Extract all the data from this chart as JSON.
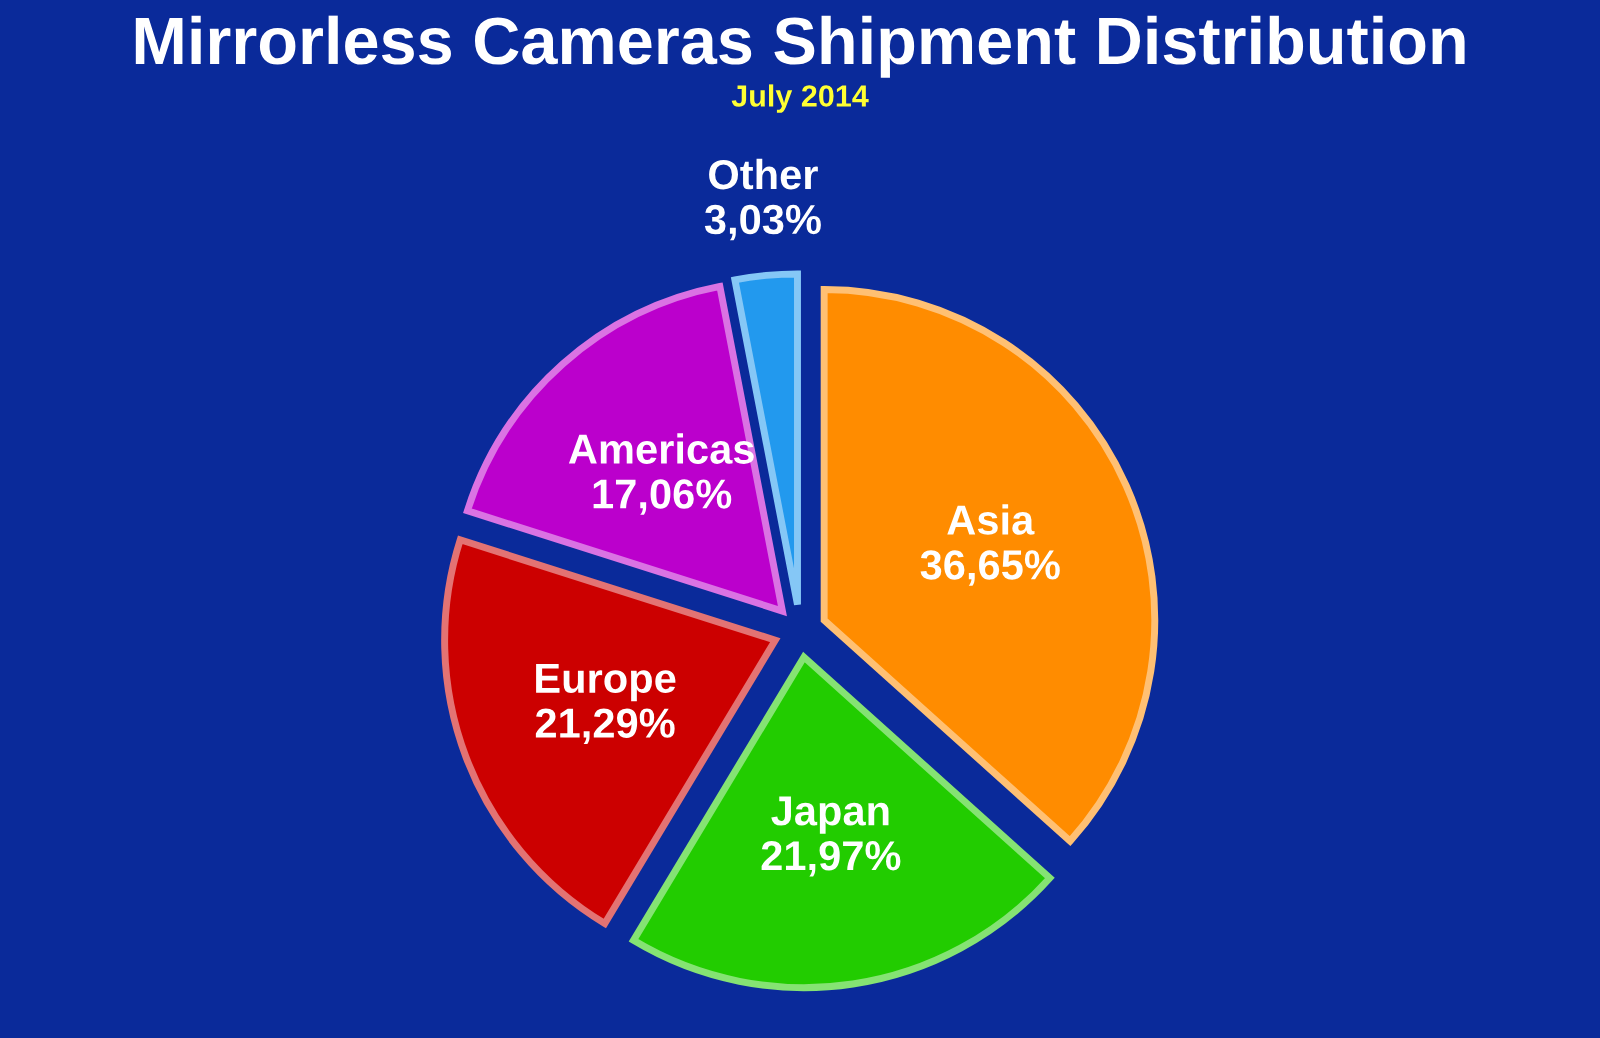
{
  "chart_data": {
    "type": "pie",
    "title": "Mirrorless Cameras Shipment Distribution",
    "subtitle": "July 2014",
    "categories": [
      "Asia",
      "Japan",
      "Europe",
      "Americas",
      "Other"
    ],
    "values": [
      36.65,
      21.97,
      21.29,
      17.06,
      3.03
    ],
    "value_labels": [
      "36,65%",
      "21,97%",
      "21,29%",
      "17,06%",
      "3,03%"
    ],
    "colors": [
      "#ff8c00",
      "#22cc00",
      "#cc0000",
      "#bb00cc",
      "#2299ee"
    ],
    "legend": false
  }
}
